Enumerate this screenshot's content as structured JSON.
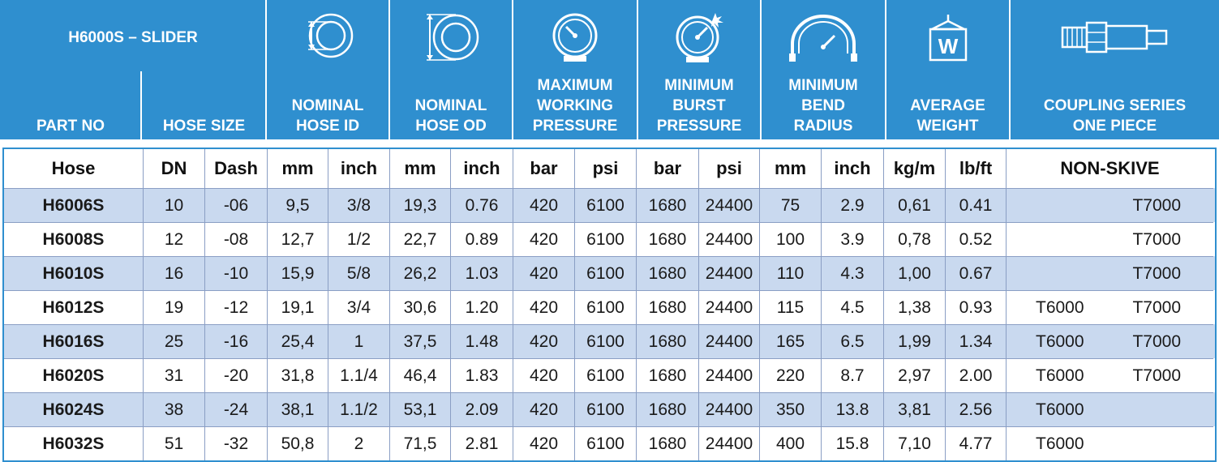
{
  "header": {
    "title": "H6000S – SLIDER",
    "part_no": "PART NO",
    "hose_size": "HOSE SIZE",
    "nominal_hose_id": [
      "NOMINAL",
      "HOSE ID"
    ],
    "nominal_hose_od": [
      "NOMINAL",
      "HOSE OD"
    ],
    "max_working_pressure": [
      "MAXIMUM",
      "WORKING",
      "PRESSURE"
    ],
    "min_burst_pressure": [
      "MINIMUM",
      "BURST",
      "PRESSURE"
    ],
    "min_bend_radius": [
      "MINIMUM",
      "BEND",
      "RADIUS"
    ],
    "average_weight": [
      "AVERAGE",
      "WEIGHT"
    ],
    "coupling_series": [
      "COUPLING SERIES",
      "ONE PIECE"
    ],
    "icons": [
      "hose-id-icon",
      "hose-od-icon",
      "pressure-gauge-icon",
      "burst-gauge-icon",
      "bend-radius-icon",
      "weight-icon",
      "coupling-icon"
    ],
    "weight_letter": "W",
    "bg_color": "#2f8fcf"
  },
  "units": [
    "Hose",
    "DN",
    "Dash",
    "mm",
    "inch",
    "mm",
    "inch",
    "bar",
    "psi",
    "bar",
    "psi",
    "mm",
    "inch",
    "kg/m",
    "lb/ft",
    "NON-SKIVE"
  ],
  "rows": [
    {
      "part": "H6006S",
      "dn": "10",
      "dash": "-06",
      "id_mm": "9,5",
      "id_in": "3/8",
      "od_mm": "19,3",
      "od_in": "0.76",
      "wp_bar": "420",
      "wp_psi": "6100",
      "bp_bar": "1680",
      "bp_psi": "24400",
      "br_mm": "75",
      "br_in": "2.9",
      "w_kg": "0,61",
      "w_lb": "0.41",
      "c1": "",
      "c2": "T7000"
    },
    {
      "part": "H6008S",
      "dn": "12",
      "dash": "-08",
      "id_mm": "12,7",
      "id_in": "1/2",
      "od_mm": "22,7",
      "od_in": "0.89",
      "wp_bar": "420",
      "wp_psi": "6100",
      "bp_bar": "1680",
      "bp_psi": "24400",
      "br_mm": "100",
      "br_in": "3.9",
      "w_kg": "0,78",
      "w_lb": "0.52",
      "c1": "",
      "c2": "T7000"
    },
    {
      "part": "H6010S",
      "dn": "16",
      "dash": "-10",
      "id_mm": "15,9",
      "id_in": "5/8",
      "od_mm": "26,2",
      "od_in": "1.03",
      "wp_bar": "420",
      "wp_psi": "6100",
      "bp_bar": "1680",
      "bp_psi": "24400",
      "br_mm": "110",
      "br_in": "4.3",
      "w_kg": "1,00",
      "w_lb": "0.67",
      "c1": "",
      "c2": "T7000"
    },
    {
      "part": "H6012S",
      "dn": "19",
      "dash": "-12",
      "id_mm": "19,1",
      "id_in": "3/4",
      "od_mm": "30,6",
      "od_in": "1.20",
      "wp_bar": "420",
      "wp_psi": "6100",
      "bp_bar": "1680",
      "bp_psi": "24400",
      "br_mm": "115",
      "br_in": "4.5",
      "w_kg": "1,38",
      "w_lb": "0.93",
      "c1": "T6000",
      "c2": "T7000"
    },
    {
      "part": "H6016S",
      "dn": "25",
      "dash": "-16",
      "id_mm": "25,4",
      "id_in": "1",
      "od_mm": "37,5",
      "od_in": "1.48",
      "wp_bar": "420",
      "wp_psi": "6100",
      "bp_bar": "1680",
      "bp_psi": "24400",
      "br_mm": "165",
      "br_in": "6.5",
      "w_kg": "1,99",
      "w_lb": "1.34",
      "c1": "T6000",
      "c2": "T7000"
    },
    {
      "part": "H6020S",
      "dn": "31",
      "dash": "-20",
      "id_mm": "31,8",
      "id_in": "1.1/4",
      "od_mm": "46,4",
      "od_in": "1.83",
      "wp_bar": "420",
      "wp_psi": "6100",
      "bp_bar": "1680",
      "bp_psi": "24400",
      "br_mm": "220",
      "br_in": "8.7",
      "w_kg": "2,97",
      "w_lb": "2.00",
      "c1": "T6000",
      "c2": "T7000"
    },
    {
      "part": "H6024S",
      "dn": "38",
      "dash": "-24",
      "id_mm": "38,1",
      "id_in": "1.1/2",
      "od_mm": "53,1",
      "od_in": "2.09",
      "wp_bar": "420",
      "wp_psi": "6100",
      "bp_bar": "1680",
      "bp_psi": "24400",
      "br_mm": "350",
      "br_in": "13.8",
      "w_kg": "3,81",
      "w_lb": "2.56",
      "c1": "T6000",
      "c2": ""
    },
    {
      "part": "H6032S",
      "dn": "51",
      "dash": "-32",
      "id_mm": "50,8",
      "id_in": "2",
      "od_mm": "71,5",
      "od_in": "2.81",
      "wp_bar": "420",
      "wp_psi": "6100",
      "bp_bar": "1680",
      "bp_psi": "24400",
      "br_mm": "400",
      "br_in": "15.8",
      "w_kg": "7,10",
      "w_lb": "4.77",
      "c1": "T6000",
      "c2": ""
    }
  ],
  "colors": {
    "header_blue": "#2f8fcf",
    "row_alt": "#c9d9ef",
    "border": "#2f8fcf"
  }
}
